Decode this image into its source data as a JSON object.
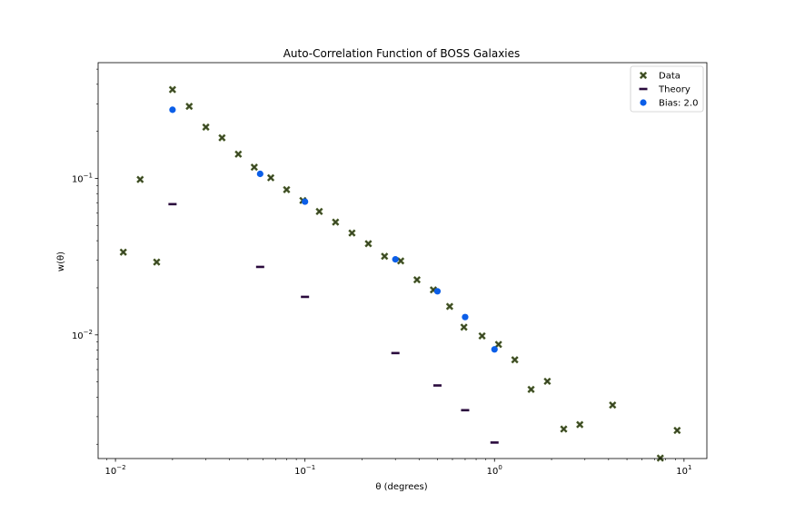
{
  "chart_data": {
    "type": "scatter",
    "title": "Auto-Correlation Function of BOSS Galaxies",
    "xlabel": "θ (degrees)",
    "ylabel": "w(θ)",
    "xscale": "log",
    "yscale": "log",
    "xlim": [
      0.0081,
      13.2
    ],
    "ylim": [
      0.00162,
      0.55
    ],
    "grid": false,
    "legend_placement": "top-right",
    "x_ticks": [
      {
        "value": 0.01,
        "base": "10",
        "exp": "−2"
      },
      {
        "value": 0.1,
        "base": "10",
        "exp": "−1"
      },
      {
        "value": 1,
        "base": "10",
        "exp": "0"
      },
      {
        "value": 10,
        "base": "10",
        "exp": "1"
      }
    ],
    "y_ticks": [
      {
        "value": 0.01,
        "base": "10",
        "exp": "−2"
      },
      {
        "value": 0.1,
        "base": "10",
        "exp": "−1"
      }
    ],
    "series": [
      {
        "name": "Data",
        "marker": "x",
        "color": "#556b2f",
        "points": [
          [
            0.011,
            0.0338
          ],
          [
            0.0135,
            0.0985
          ],
          [
            0.0165,
            0.0292
          ],
          [
            0.02,
            0.37
          ],
          [
            0.0245,
            0.289
          ],
          [
            0.03,
            0.213
          ],
          [
            0.0365,
            0.182
          ],
          [
            0.0445,
            0.143
          ],
          [
            0.054,
            0.118
          ],
          [
            0.066,
            0.101
          ],
          [
            0.08,
            0.0848
          ],
          [
            0.0975,
            0.0723
          ],
          [
            0.119,
            0.0615
          ],
          [
            0.145,
            0.0526
          ],
          [
            0.177,
            0.0448
          ],
          [
            0.216,
            0.0383
          ],
          [
            0.263,
            0.0318
          ],
          [
            0.32,
            0.0297
          ],
          [
            0.39,
            0.0225
          ],
          [
            0.476,
            0.0194
          ],
          [
            0.58,
            0.0152
          ],
          [
            0.69,
            0.0112
          ],
          [
            0.86,
            0.00985
          ],
          [
            1.05,
            0.00869
          ],
          [
            1.28,
            0.00693
          ],
          [
            1.56,
            0.00448
          ],
          [
            1.9,
            0.00505
          ],
          [
            2.32,
            0.0025
          ],
          [
            2.82,
            0.00267
          ],
          [
            4.2,
            0.00356
          ],
          [
            7.5,
            0.00163
          ],
          [
            9.2,
            0.00245
          ]
        ]
      },
      {
        "name": "Theory",
        "marker": "_",
        "color": "#2a0a3d",
        "points": [
          [
            0.02,
            0.0685
          ],
          [
            0.058,
            0.0272
          ],
          [
            0.1,
            0.0175
          ],
          [
            0.3,
            0.00765
          ],
          [
            0.5,
            0.00475
          ],
          [
            0.7,
            0.0033
          ],
          [
            1.0,
            0.00205
          ]
        ]
      },
      {
        "name": "Bias: 2.0",
        "marker": "o",
        "color": "#0b5ee8",
        "points": [
          [
            0.02,
            0.275
          ],
          [
            0.058,
            0.107
          ],
          [
            0.1,
            0.0711
          ],
          [
            0.3,
            0.0304
          ],
          [
            0.5,
            0.019
          ],
          [
            0.7,
            0.013
          ],
          [
            1.0,
            0.00808
          ]
        ]
      }
    ]
  }
}
